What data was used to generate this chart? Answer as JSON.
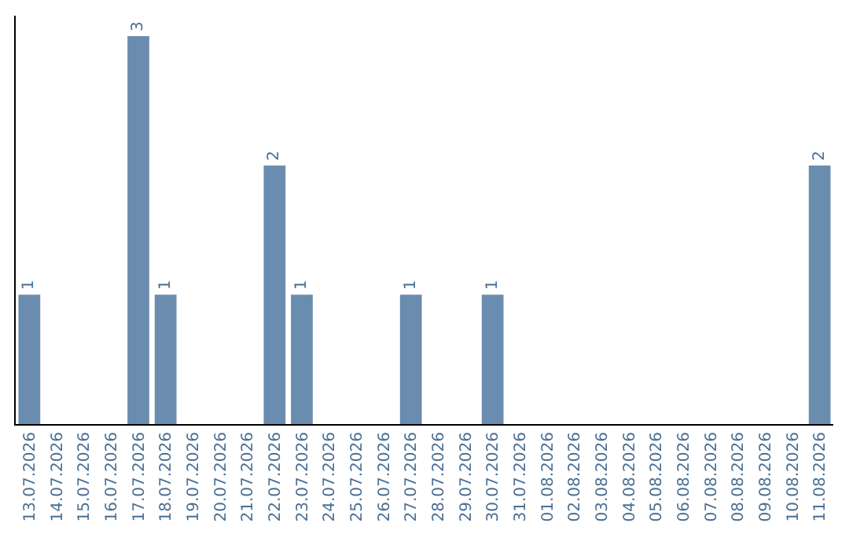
{
  "chart_data": {
    "type": "bar",
    "categories": [
      "13.07.2026",
      "14.07.2026",
      "15.07.2026",
      "16.07.2026",
      "17.07.2026",
      "18.07.2026",
      "19.07.2026",
      "20.07.2026",
      "21.07.2026",
      "22.07.2026",
      "23.07.2026",
      "24.07.2026",
      "25.07.2026",
      "26.07.2026",
      "27.07.2026",
      "28.07.2026",
      "29.07.2026",
      "30.07.2026",
      "31.07.2026",
      "01.08.2026",
      "02.08.2026",
      "03.08.2026",
      "04.08.2026",
      "05.08.2026",
      "06.08.2026",
      "07.08.2026",
      "08.08.2026",
      "09.08.2026",
      "10.08.2026",
      "11.08.2026"
    ],
    "values": [
      1,
      0,
      0,
      0,
      3,
      1,
      0,
      0,
      0,
      2,
      1,
      0,
      0,
      0,
      1,
      0,
      0,
      1,
      0,
      0,
      0,
      0,
      0,
      0,
      0,
      0,
      0,
      0,
      0,
      2
    ],
    "value_labels": [
      "1",
      null,
      null,
      null,
      "3",
      "1",
      null,
      null,
      null,
      "2",
      "1",
      null,
      null,
      null,
      "1",
      null,
      null,
      "1",
      null,
      null,
      null,
      null,
      null,
      null,
      null,
      null,
      null,
      null,
      null,
      "2"
    ],
    "color": "#6a8caf",
    "tick_labels": "x",
    "grid": false,
    "legend": false
  }
}
